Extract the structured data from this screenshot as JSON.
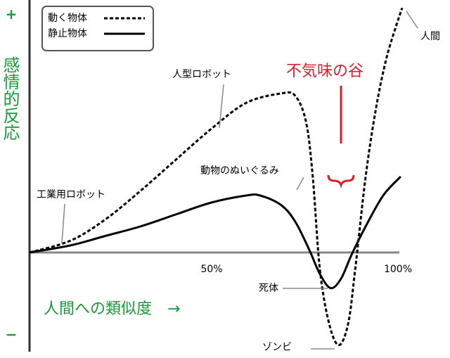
{
  "chart_data": {
    "type": "line",
    "x_label": "人間への類似度　→",
    "y_label": "感情的反応",
    "xlim": [
      0,
      100
    ],
    "ylim": [
      -40,
      104
    ],
    "xticks": [
      {
        "value": 50,
        "label": "50%"
      },
      {
        "value": 100,
        "label": "100%"
      }
    ],
    "yticks": [
      {
        "value": 100,
        "label": "+"
      },
      {
        "value": -35,
        "label": "−"
      }
    ],
    "legend": "upper left",
    "series": [
      {
        "name": "動く物体",
        "color": "#000000",
        "dash": true,
        "x": [
          0,
          11,
          20.4,
          29.8,
          39.2,
          48.7,
          58.1,
          67.5,
          71.3,
          74.2,
          76,
          77.9,
          80.4,
          83,
          85.5,
          87.4,
          90.2,
          93,
          95.8,
          98.7,
          100
        ],
        "values": [
          0,
          5,
          14,
          26,
          39,
          52,
          63,
          67,
          66,
          55,
          32,
          -7,
          -30,
          -39,
          -30,
          -7,
          32,
          61,
          82,
          97,
          103
        ]
      },
      {
        "name": "静止物体",
        "color": "#000000",
        "dash": false,
        "x": [
          0,
          11,
          20.4,
          29.8,
          39.2,
          48.7,
          58.1,
          61.9,
          67.5,
          71.3,
          75.1,
          77.9,
          80.8,
          83.6,
          86.4,
          90.2,
          94.9,
          99.6
        ],
        "values": [
          0,
          3,
          7,
          11,
          16,
          21,
          24,
          24,
          20,
          13,
          1,
          -9,
          -15,
          -11,
          -1,
          11,
          24,
          32
        ]
      }
    ],
    "annotations": [
      "人型ロボット",
      "工業用ロボット",
      "動物のぬいぐるみ",
      "人間",
      "死体",
      "ゾンビ",
      "不気味の谷"
    ]
  }
}
